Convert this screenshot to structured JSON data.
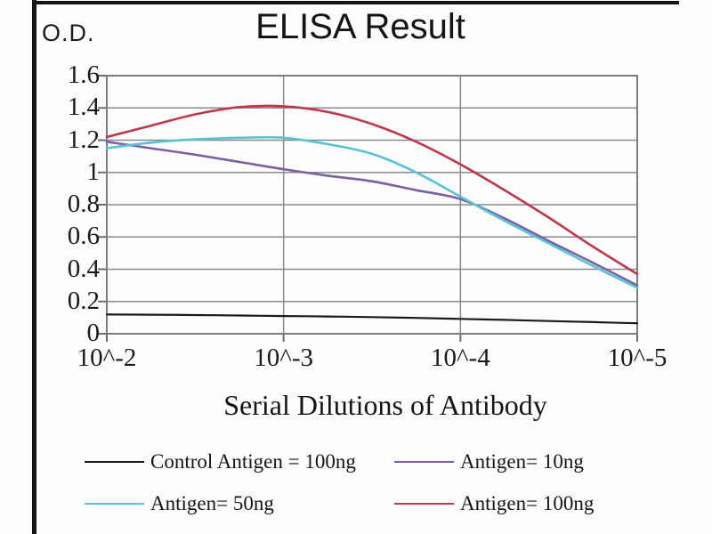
{
  "chart_data": {
    "type": "line",
    "title": "ELISA Result",
    "y_axis_unit": "O.D.",
    "xlabel": "Serial Dilutions of Antibody",
    "x_tick_labels": [
      "10^-2",
      "10^-3",
      "10^-4",
      "10^-5"
    ],
    "x_tick_log10": [
      -2,
      -3,
      -4,
      -5
    ],
    "y_tick_labels": [
      "1.6",
      "1.4",
      "1.2",
      "1",
      "0.8",
      "0.6",
      "0.4",
      "0.2",
      "0"
    ],
    "y_ticks": [
      1.6,
      1.4,
      1.2,
      1,
      0.8,
      0.6,
      0.4,
      0.2,
      0
    ],
    "ylim": [
      0,
      1.6
    ],
    "x_axis_scale": "log10 dilution, 10^-2 to 10^-5",
    "grid": true,
    "legend_position": "bottom",
    "x_log10_samples": [
      -2,
      -2.25,
      -2.5,
      -2.75,
      -3,
      -3.25,
      -3.5,
      -3.75,
      -4,
      -4.25,
      -4.5,
      -4.75,
      -5
    ],
    "series": [
      {
        "name": "Control Antigen = 100ng",
        "color": "#1b1b1b",
        "values": [
          0.12,
          0.118,
          0.116,
          0.113,
          0.11,
          0.107,
          0.103,
          0.098,
          0.092,
          0.086,
          0.079,
          0.072,
          0.065
        ]
      },
      {
        "name": "Antigen= 10ng",
        "color": "#7d60a0",
        "values": [
          1.19,
          1.15,
          1.11,
          1.065,
          1.02,
          0.98,
          0.945,
          0.89,
          0.835,
          0.715,
          0.575,
          0.44,
          0.3
        ]
      },
      {
        "name": "Antigen= 50ng",
        "color": "#57c2d9",
        "values": [
          1.15,
          1.185,
          1.205,
          1.215,
          1.215,
          1.175,
          1.115,
          1.0,
          0.85,
          0.7,
          0.56,
          0.42,
          0.285
        ]
      },
      {
        "name": "Antigen= 100ng",
        "color": "#c0384e",
        "values": [
          1.22,
          1.29,
          1.36,
          1.405,
          1.41,
          1.375,
          1.3,
          1.19,
          1.05,
          0.89,
          0.72,
          0.54,
          0.37
        ]
      }
    ],
    "colors": {
      "gridline": "#8a8a8a",
      "axis_frame": "#7d7d7d",
      "photo_frame": "#141414"
    }
  }
}
